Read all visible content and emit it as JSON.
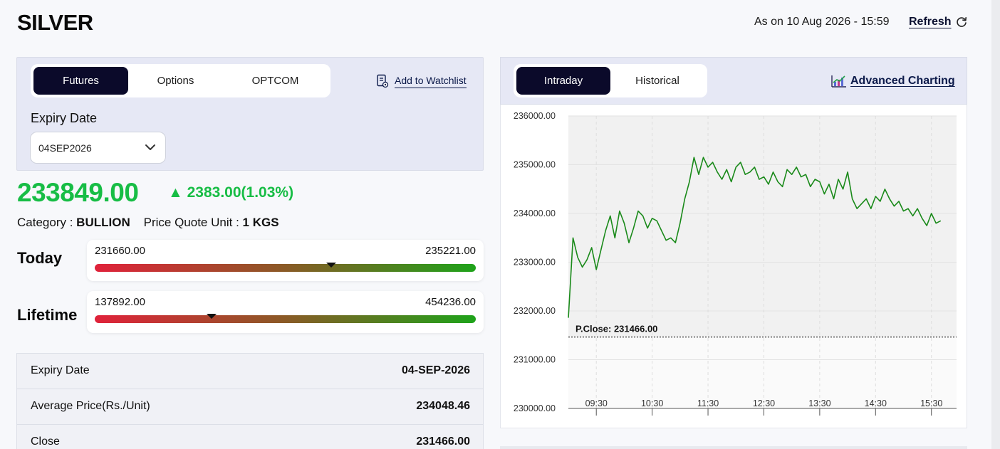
{
  "page": {
    "title": "SILVER",
    "as_on": "As on 10 Aug 2026 - 15:59",
    "refresh_label": "Refresh"
  },
  "left": {
    "tabs": [
      {
        "label": "Futures",
        "active": true
      },
      {
        "label": "Options",
        "active": false
      },
      {
        "label": "OPTCOM",
        "active": false
      }
    ],
    "watchlist_label": "Add to Watchlist",
    "expiry_label": "Expiry Date",
    "expiry_value": "04SEP2026",
    "price": "233849.00",
    "change": "▲ 2383.00(1.03%)",
    "change_direction": "up",
    "category_label": "Category :",
    "category_value": "BULLION",
    "pqu_label": "Price Quote Unit :",
    "pqu_value": "1 KGS",
    "today": {
      "label": "Today",
      "low": "231660.00",
      "high": "235221.00",
      "marker_fraction": 0.62
    },
    "lifetime": {
      "label": "Lifetime",
      "low": "137892.00",
      "high": "454236.00",
      "marker_fraction": 0.306
    },
    "info_rows": [
      {
        "key": "Expiry Date",
        "value": "04-SEP-2026"
      },
      {
        "key": "Average Price(Rs./Unit)",
        "value": "234048.46"
      },
      {
        "key": "Close",
        "value": "231466.00"
      }
    ]
  },
  "right": {
    "tabs": [
      {
        "label": "Intraday",
        "active": true
      },
      {
        "label": "Historical",
        "active": false
      }
    ],
    "advanced_label": "Advanced Charting"
  },
  "colors": {
    "accent_dark": "#0b0a2a",
    "positive": "#17bd45",
    "line": "#1a8a1a",
    "panel_bg": "#e6e8f5"
  },
  "chart_data": {
    "type": "line",
    "title": "",
    "xlabel": "",
    "ylabel": "",
    "ylim": [
      230000,
      236000
    ],
    "yticks": [
      "236000.00",
      "235000.00",
      "234000.00",
      "233000.00",
      "232000.00",
      "231000.00",
      "230000.00"
    ],
    "xticks": [
      "09:30",
      "10:30",
      "11:30",
      "12:30",
      "13:30",
      "14:30",
      "15:30"
    ],
    "reference_line": {
      "label": "P.Close: 231466.00",
      "value": 231466
    },
    "series": [
      {
        "x": [
          "09:00",
          "09:05",
          "09:10",
          "09:15",
          "09:20",
          "09:25",
          "09:30",
          "09:35",
          "09:40",
          "09:45",
          "09:50",
          "09:55",
          "10:00",
          "10:05",
          "10:10",
          "10:15",
          "10:20",
          "10:25",
          "10:30",
          "10:35",
          "10:40",
          "10:45",
          "10:50",
          "10:55",
          "11:00",
          "11:05",
          "11:10",
          "11:15",
          "11:20",
          "11:25",
          "11:30",
          "11:35",
          "11:40",
          "11:45",
          "11:50",
          "11:55",
          "12:00",
          "12:05",
          "12:10",
          "12:15",
          "12:20",
          "12:25",
          "12:30",
          "12:35",
          "12:40",
          "12:45",
          "12:50",
          "12:55",
          "13:00",
          "13:05",
          "13:10",
          "13:15",
          "13:20",
          "13:25",
          "13:30",
          "13:35",
          "13:40",
          "13:45",
          "13:50",
          "13:55",
          "14:00",
          "14:05",
          "14:10",
          "14:15",
          "14:20",
          "14:25",
          "14:30",
          "14:35",
          "14:40",
          "14:45",
          "14:50",
          "14:55",
          "15:00",
          "15:05",
          "15:10",
          "15:15",
          "15:20",
          "15:25",
          "15:30",
          "15:35",
          "15:40"
        ],
        "values": [
          231860,
          233500,
          233100,
          232900,
          233050,
          233300,
          232850,
          233250,
          233650,
          233950,
          233500,
          234050,
          233800,
          233400,
          233700,
          234050,
          233950,
          233700,
          233900,
          233850,
          233650,
          233450,
          233500,
          233400,
          233800,
          234300,
          234650,
          235150,
          234800,
          235150,
          234950,
          235050,
          234850,
          234700,
          234900,
          234650,
          234950,
          235050,
          234800,
          234850,
          234950,
          234700,
          234750,
          234600,
          234850,
          234650,
          234550,
          234900,
          234800,
          234950,
          234750,
          234800,
          234550,
          234700,
          234650,
          234400,
          234600,
          234300,
          234700,
          234500,
          234850,
          234300,
          234100,
          234200,
          234300,
          234100,
          234350,
          234250,
          234500,
          234300,
          234150,
          234250,
          234050,
          234100,
          233950,
          234100,
          233900,
          233750,
          234000,
          233800,
          233850
        ]
      }
    ]
  }
}
